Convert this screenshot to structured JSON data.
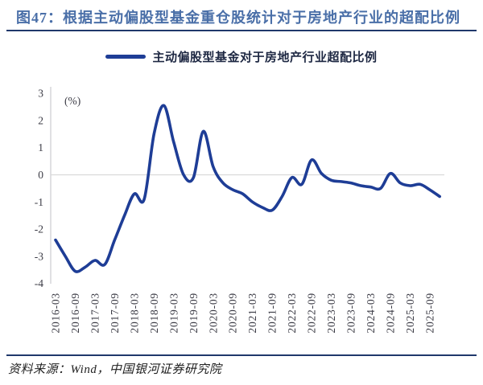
{
  "header": {
    "title": "图47：根据主动偏股型基金重仓股统计对于房地产行业的超配比例"
  },
  "legend": {
    "label": "主动偏股型基金对于房地产行业超配比例"
  },
  "footer": {
    "source": "资料来源：Wind，中国银河证券研究院"
  },
  "chart_data": {
    "type": "line",
    "title": "主动偏股型基金对于房地产行业超配比例",
    "unit_label": "(%)",
    "ylim": [
      -4,
      3
    ],
    "yticks": [
      3,
      2,
      1,
      0,
      -1,
      -2,
      -3,
      -4
    ],
    "grid": "zero-line-only",
    "legend_position": "top-center",
    "x": [
      "2016-03",
      "2016-06",
      "2016-09",
      "2016-12",
      "2017-03",
      "2017-06",
      "2017-09",
      "2017-12",
      "2018-03",
      "2018-06",
      "2018-09",
      "2018-12",
      "2019-03",
      "2019-06",
      "2019-09",
      "2019-12",
      "2020-03",
      "2020-06",
      "2020-09",
      "2020-12",
      "2021-03",
      "2021-06",
      "2021-09",
      "2021-12",
      "2022-03",
      "2022-06",
      "2022-09",
      "2022-12",
      "2023-03",
      "2023-06",
      "2023-09",
      "2023-12",
      "2024-03",
      "2024-06",
      "2024-09",
      "2024-12",
      "2025-03",
      "2025-06",
      "2025-09",
      "2025-12"
    ],
    "x_tick_labels": [
      "2016-03",
      "2016-09",
      "2017-03",
      "2017-09",
      "2018-03",
      "2018-09",
      "2019-03",
      "2019-09",
      "2020-03",
      "2020-09",
      "2021-03",
      "2021-09",
      "2022-03",
      "2022-09",
      "2023-03",
      "2023-09",
      "2024-03",
      "2024-09",
      "2025-03",
      "2025-09"
    ],
    "series": [
      {
        "name": "主动偏股型基金对于房地产行业超配比例",
        "values": [
          -2.4,
          -3.0,
          -3.55,
          -3.4,
          -3.15,
          -3.3,
          -2.4,
          -1.5,
          -0.7,
          -0.9,
          1.5,
          2.55,
          1.2,
          0.0,
          -0.1,
          1.6,
          0.3,
          -0.3,
          -0.55,
          -0.7,
          -1.0,
          -1.2,
          -1.3,
          -0.8,
          -0.1,
          -0.35,
          0.55,
          0.05,
          -0.2,
          -0.25,
          -0.3,
          -0.4,
          -0.45,
          -0.5,
          0.05,
          -0.3,
          -0.4,
          -0.35,
          -0.55,
          -0.8
        ]
      }
    ],
    "colors": {
      "line": "#1e3d96",
      "grid": "#d9d9d9",
      "axis": "#cfcfd4",
      "tick_text": "#3c3c46",
      "title_blue": "#4a6fa8",
      "rule_navy": "#20386b"
    }
  }
}
